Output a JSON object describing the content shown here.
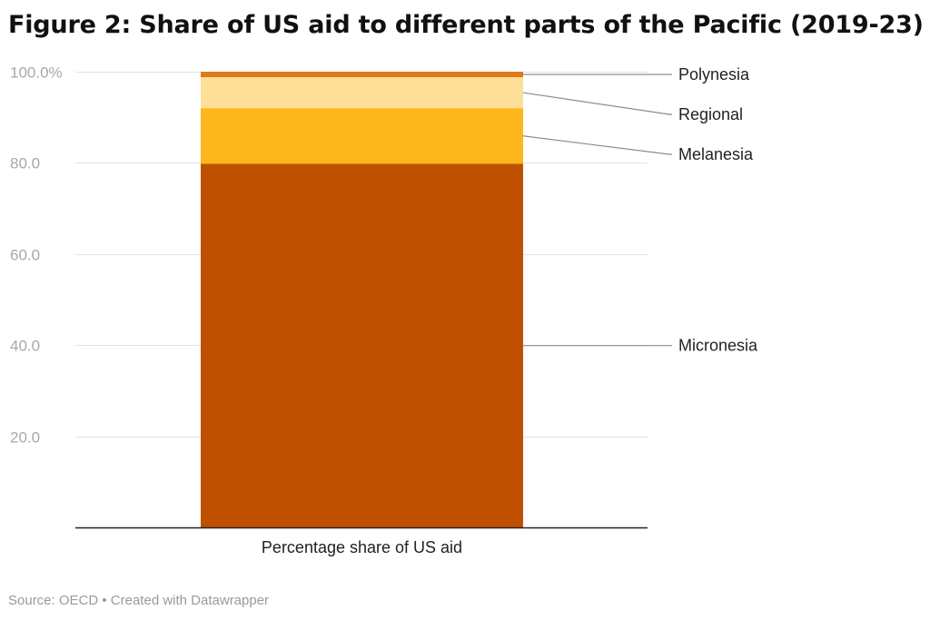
{
  "title": "Figure 2: Share of US aid to different parts of the Pacific (2019-23)",
  "footer": {
    "source": "Source: OECD",
    "separator": " • ",
    "credit": "Created with Datawrapper"
  },
  "chart_data": {
    "type": "bar",
    "stacked": true,
    "categories": [
      "Percentage share of US aid"
    ],
    "series": [
      {
        "name": "Micronesia",
        "values": [
          79.8
        ],
        "color": "#bf5000"
      },
      {
        "name": "Melanesia",
        "values": [
          12.2
        ],
        "color": "#fdb61b"
      },
      {
        "name": "Regional",
        "values": [
          6.8
        ],
        "color": "#fedf98"
      },
      {
        "name": "Polynesia",
        "values": [
          1.2
        ],
        "color": "#dd7a1c"
      }
    ],
    "yticks": [
      {
        "value": 20,
        "label": "20.0"
      },
      {
        "value": 40,
        "label": "40.0"
      },
      {
        "value": 60,
        "label": "60.0"
      },
      {
        "value": 80,
        "label": "80.0"
      },
      {
        "value": 100,
        "label": "100.0%"
      }
    ],
    "ylim": [
      0,
      100
    ],
    "grid": true,
    "legend": "direct labels, right of bar"
  }
}
